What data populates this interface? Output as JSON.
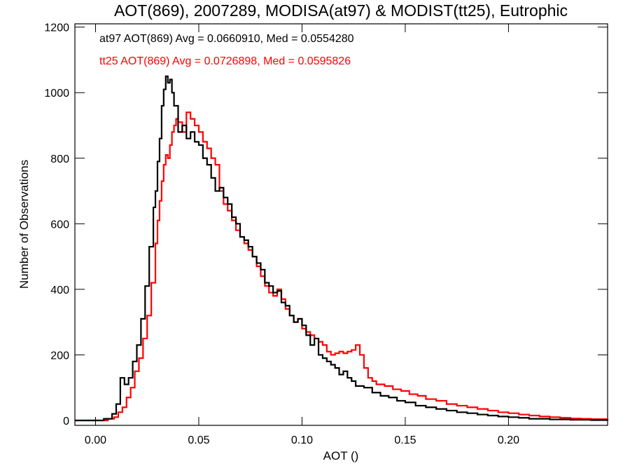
{
  "chart_data": {
    "type": "histogram-step",
    "title": "AOT(869), 2007289, MODISA(at97) & MODIST(tt25), Eutrophic",
    "xlabel": "AOT ()",
    "ylabel": "Number of Observations",
    "xlim": [
      -0.01,
      0.248
    ],
    "ylim": [
      -15,
      1210
    ],
    "xticks": [
      0.0,
      0.05,
      0.1,
      0.15,
      0.2
    ],
    "xtick_labels": [
      "0.00",
      "0.05",
      "0.10",
      "0.15",
      "0.20"
    ],
    "yticks": [
      0,
      200,
      400,
      600,
      800,
      1000,
      1200
    ],
    "ytick_labels": [
      "0",
      "200",
      "400",
      "600",
      "800",
      "1000",
      "1200"
    ],
    "grid": false,
    "legend": "top-left annotations",
    "annotations": [
      {
        "text": "at97 AOT(869) Avg = 0.0660910, Med = 0.0554280",
        "color": "#000000"
      },
      {
        "text": "tt25 AOT(869) Avg = 0.0726898, Med = 0.0595826",
        "color": "#ff0000"
      }
    ],
    "series": [
      {
        "color": "#000000",
        "points": [
          [
            -0.01,
            0
          ],
          [
            0.0,
            0
          ],
          [
            0.004,
            5
          ],
          [
            0.008,
            20
          ],
          [
            0.01,
            50
          ],
          [
            0.012,
            130
          ],
          [
            0.014,
            110
          ],
          [
            0.016,
            130
          ],
          [
            0.018,
            180
          ],
          [
            0.02,
            230
          ],
          [
            0.022,
            310
          ],
          [
            0.024,
            410
          ],
          [
            0.026,
            530
          ],
          [
            0.028,
            650
          ],
          [
            0.029,
            700
          ],
          [
            0.03,
            790
          ],
          [
            0.031,
            860
          ],
          [
            0.032,
            960
          ],
          [
            0.033,
            1010
          ],
          [
            0.034,
            1050
          ],
          [
            0.035,
            1030
          ],
          [
            0.036,
            1040
          ],
          [
            0.037,
            1000
          ],
          [
            0.038,
            960
          ],
          [
            0.04,
            880
          ],
          [
            0.042,
            900
          ],
          [
            0.044,
            860
          ],
          [
            0.046,
            880
          ],
          [
            0.048,
            850
          ],
          [
            0.05,
            840
          ],
          [
            0.052,
            800
          ],
          [
            0.054,
            780
          ],
          [
            0.056,
            740
          ],
          [
            0.058,
            700
          ],
          [
            0.06,
            710
          ],
          [
            0.062,
            680
          ],
          [
            0.064,
            660
          ],
          [
            0.066,
            620
          ],
          [
            0.068,
            600
          ],
          [
            0.07,
            560
          ],
          [
            0.072,
            550
          ],
          [
            0.074,
            530
          ],
          [
            0.076,
            500
          ],
          [
            0.078,
            480
          ],
          [
            0.08,
            460
          ],
          [
            0.082,
            420
          ],
          [
            0.084,
            410
          ],
          [
            0.086,
            390
          ],
          [
            0.088,
            395
          ],
          [
            0.09,
            360
          ],
          [
            0.092,
            350
          ],
          [
            0.094,
            320
          ],
          [
            0.096,
            300
          ],
          [
            0.098,
            310
          ],
          [
            0.1,
            290
          ],
          [
            0.102,
            260
          ],
          [
            0.104,
            230
          ],
          [
            0.106,
            250
          ],
          [
            0.108,
            200
          ],
          [
            0.11,
            190
          ],
          [
            0.112,
            180
          ],
          [
            0.114,
            170
          ],
          [
            0.116,
            160
          ],
          [
            0.118,
            140
          ],
          [
            0.12,
            150
          ],
          [
            0.122,
            130
          ],
          [
            0.124,
            120
          ],
          [
            0.126,
            105
          ],
          [
            0.13,
            100
          ],
          [
            0.134,
            85
          ],
          [
            0.138,
            75
          ],
          [
            0.142,
            70
          ],
          [
            0.146,
            60
          ],
          [
            0.15,
            55
          ],
          [
            0.155,
            45
          ],
          [
            0.16,
            40
          ],
          [
            0.165,
            35
          ],
          [
            0.17,
            30
          ],
          [
            0.175,
            25
          ],
          [
            0.18,
            22
          ],
          [
            0.185,
            18
          ],
          [
            0.19,
            15
          ],
          [
            0.195,
            12
          ],
          [
            0.2,
            10
          ],
          [
            0.205,
            8
          ],
          [
            0.21,
            5
          ],
          [
            0.22,
            3
          ],
          [
            0.23,
            2
          ],
          [
            0.24,
            1
          ],
          [
            0.248,
            0
          ]
        ]
      },
      {
        "color": "#ff0000",
        "points": [
          [
            -0.01,
            0
          ],
          [
            0.002,
            0
          ],
          [
            0.006,
            5
          ],
          [
            0.009,
            10
          ],
          [
            0.011,
            25
          ],
          [
            0.013,
            40
          ],
          [
            0.015,
            70
          ],
          [
            0.017,
            100
          ],
          [
            0.019,
            150
          ],
          [
            0.021,
            190
          ],
          [
            0.023,
            250
          ],
          [
            0.025,
            320
          ],
          [
            0.027,
            420
          ],
          [
            0.029,
            540
          ],
          [
            0.03,
            610
          ],
          [
            0.031,
            670
          ],
          [
            0.032,
            730
          ],
          [
            0.033,
            780
          ],
          [
            0.034,
            810
          ],
          [
            0.035,
            800
          ],
          [
            0.036,
            840
          ],
          [
            0.037,
            880
          ],
          [
            0.038,
            900
          ],
          [
            0.039,
            920
          ],
          [
            0.04,
            910
          ],
          [
            0.042,
            880
          ],
          [
            0.044,
            940
          ],
          [
            0.046,
            920
          ],
          [
            0.048,
            900
          ],
          [
            0.05,
            880
          ],
          [
            0.052,
            850
          ],
          [
            0.054,
            830
          ],
          [
            0.056,
            800
          ],
          [
            0.058,
            780
          ],
          [
            0.06,
            700
          ],
          [
            0.062,
            660
          ],
          [
            0.064,
            640
          ],
          [
            0.066,
            610
          ],
          [
            0.068,
            580
          ],
          [
            0.07,
            560
          ],
          [
            0.072,
            540
          ],
          [
            0.074,
            520
          ],
          [
            0.076,
            500
          ],
          [
            0.078,
            470
          ],
          [
            0.08,
            440
          ],
          [
            0.082,
            410
          ],
          [
            0.084,
            390
          ],
          [
            0.086,
            380
          ],
          [
            0.088,
            400
          ],
          [
            0.09,
            370
          ],
          [
            0.092,
            340
          ],
          [
            0.094,
            320
          ],
          [
            0.096,
            300
          ],
          [
            0.098,
            310
          ],
          [
            0.1,
            280
          ],
          [
            0.102,
            270
          ],
          [
            0.104,
            260
          ],
          [
            0.106,
            250
          ],
          [
            0.108,
            240
          ],
          [
            0.11,
            230
          ],
          [
            0.112,
            210
          ],
          [
            0.114,
            200
          ],
          [
            0.116,
            205
          ],
          [
            0.118,
            210
          ],
          [
            0.12,
            205
          ],
          [
            0.122,
            210
          ],
          [
            0.124,
            215
          ],
          [
            0.126,
            230
          ],
          [
            0.128,
            200
          ],
          [
            0.13,
            160
          ],
          [
            0.132,
            130
          ],
          [
            0.134,
            120
          ],
          [
            0.136,
            110
          ],
          [
            0.14,
            105
          ],
          [
            0.144,
            95
          ],
          [
            0.148,
            90
          ],
          [
            0.152,
            80
          ],
          [
            0.156,
            75
          ],
          [
            0.16,
            65
          ],
          [
            0.165,
            60
          ],
          [
            0.17,
            50
          ],
          [
            0.175,
            45
          ],
          [
            0.18,
            40
          ],
          [
            0.185,
            35
          ],
          [
            0.19,
            30
          ],
          [
            0.195,
            25
          ],
          [
            0.2,
            22
          ],
          [
            0.205,
            18
          ],
          [
            0.21,
            15
          ],
          [
            0.215,
            12
          ],
          [
            0.22,
            10
          ],
          [
            0.225,
            8
          ],
          [
            0.23,
            6
          ],
          [
            0.235,
            5
          ],
          [
            0.24,
            4
          ],
          [
            0.248,
            3
          ]
        ]
      }
    ]
  }
}
